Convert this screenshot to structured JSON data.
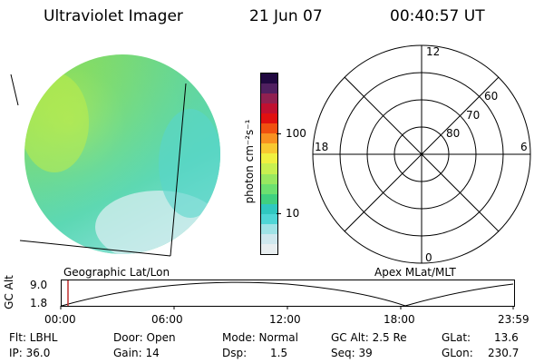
{
  "header": {
    "title": "Ultraviolet Imager",
    "date": "21 Jun 07",
    "time": "00:40:57 UT"
  },
  "image_panel": {
    "label": "Geographic Lat/Lon"
  },
  "colorbar": {
    "unit_label": "photon cm⁻²s⁻¹",
    "ticks": [
      "100",
      "10"
    ],
    "colors": [
      "#e8eef0",
      "#cfe8ee",
      "#9fe3e6",
      "#4fd6d6",
      "#30c8c0",
      "#40d080",
      "#6ce070",
      "#98e860",
      "#c8f050",
      "#f0f040",
      "#f8c830",
      "#f89020",
      "#f05010",
      "#e01010",
      "#c01030",
      "#902050",
      "#502060",
      "#200840"
    ]
  },
  "polar_plot": {
    "label": "Apex MLat/MLT",
    "mlt_labels": [
      "12",
      "18",
      "6",
      "0"
    ],
    "lat_labels": [
      "60",
      "70",
      "80"
    ]
  },
  "altitude_plot": {
    "ylabel": "GC Alt",
    "yticks": [
      "9.0",
      "1.8"
    ],
    "xticks": [
      "00:00",
      "06:00",
      "12:00",
      "18:00",
      "23:59"
    ]
  },
  "info": {
    "flt": "Flt: LBHL",
    "ip": "IP: 36.0",
    "door": "Door: Open",
    "gain": "Gain: 14",
    "mode": "Mode: Normal",
    "dsp": "Dsp:",
    "dsp_value": "1.5",
    "gc_alt": "GC Alt: 2.5 Re",
    "seq": "Seq: 39",
    "glat": "GLat:",
    "glat_value": "13.6",
    "glon": "GLon:",
    "glon_value": "230.7"
  }
}
